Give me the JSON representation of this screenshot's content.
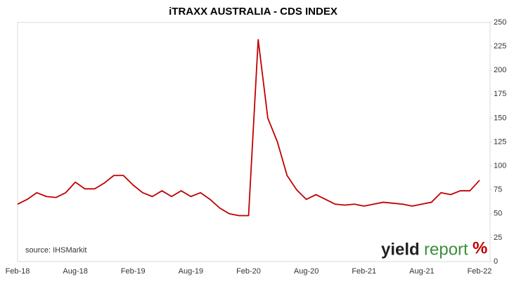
{
  "chart_data": {
    "type": "line",
    "title": "iTRAXX AUSTRALIA - CDS INDEX",
    "x": [
      "Feb-18",
      "Mar-18",
      "Apr-18",
      "May-18",
      "Jun-18",
      "Jul-18",
      "Aug-18",
      "Sep-18",
      "Oct-18",
      "Nov-18",
      "Dec-18",
      "Jan-19",
      "Feb-19",
      "Mar-19",
      "Apr-19",
      "May-19",
      "Jun-19",
      "Jul-19",
      "Aug-19",
      "Sep-19",
      "Oct-19",
      "Nov-19",
      "Dec-19",
      "Jan-20",
      "Feb-20",
      "Mar-20",
      "Apr-20",
      "May-20",
      "Jun-20",
      "Jul-20",
      "Aug-20",
      "Sep-20",
      "Oct-20",
      "Nov-20",
      "Dec-20",
      "Jan-21",
      "Feb-21",
      "Mar-21",
      "Apr-21",
      "May-21",
      "Jun-21",
      "Jul-21",
      "Aug-21",
      "Sep-21",
      "Oct-21",
      "Nov-21",
      "Dec-21",
      "Jan-22",
      "Feb-22"
    ],
    "series": [
      {
        "name": "iTRAXX Australia",
        "color": "#c00000",
        "values": [
          60,
          65,
          72,
          68,
          67,
          72,
          83,
          76,
          76,
          82,
          90,
          90,
          80,
          72,
          68,
          74,
          68,
          74,
          68,
          72,
          65,
          56,
          50,
          48,
          48,
          232,
          150,
          125,
          90,
          75,
          65,
          70,
          65,
          60,
          59,
          60,
          58,
          60,
          62,
          61,
          60,
          58,
          60,
          62,
          72,
          70,
          74,
          74,
          85
        ]
      }
    ],
    "xticks": [
      "Feb-18",
      "Aug-18",
      "Feb-19",
      "Aug-19",
      "Feb-20",
      "Aug-20",
      "Feb-21",
      "Aug-21",
      "Feb-22"
    ],
    "ylim": [
      0,
      250
    ],
    "yticks": [
      0,
      25,
      50,
      75,
      100,
      125,
      150,
      175,
      200,
      225,
      250
    ],
    "y_axis_side": "right",
    "grid": false,
    "source": "source: IHSMarkit",
    "logo": {
      "yield": "yield",
      "report": "report",
      "symbol": "%"
    }
  }
}
